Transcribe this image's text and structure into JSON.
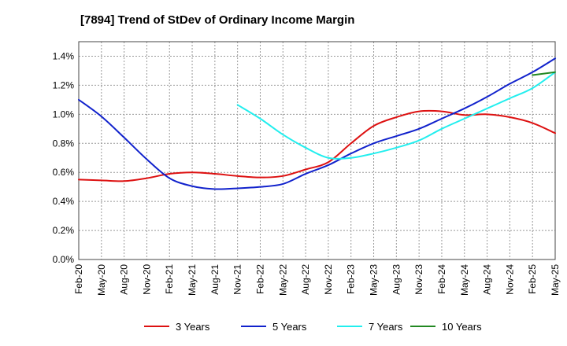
{
  "chart_data": {
    "type": "line",
    "title": "[7894]  Trend of StDev of Ordinary Income Margin",
    "xlabel": "",
    "ylabel": "",
    "ylim": [
      0,
      1.5
    ],
    "yticks": [
      0,
      0.2,
      0.4,
      0.6,
      0.8,
      1.0,
      1.2,
      1.4
    ],
    "ytick_labels": [
      "0.0%",
      "0.2%",
      "0.4%",
      "0.6%",
      "0.8%",
      "1.0%",
      "1.2%",
      "1.4%"
    ],
    "x_labels": [
      "Feb-20",
      "May-20",
      "Aug-20",
      "Nov-20",
      "Feb-21",
      "May-21",
      "Aug-21",
      "Nov-21",
      "Feb-22",
      "May-22",
      "Aug-22",
      "Nov-22",
      "Feb-23",
      "May-23",
      "Aug-23",
      "Nov-23",
      "Feb-24",
      "May-24",
      "Aug-24",
      "Nov-24",
      "Feb-25",
      "May-25"
    ],
    "grid": true,
    "legend_position": "bottom",
    "series": [
      {
        "name": "3 Years",
        "color": "#dd1111",
        "values": [
          0.55,
          0.545,
          0.54,
          0.56,
          0.59,
          0.6,
          0.59,
          0.575,
          0.565,
          0.575,
          0.62,
          0.67,
          0.8,
          0.92,
          0.98,
          1.02,
          1.02,
          0.995,
          1.0,
          0.98,
          0.94,
          0.87
        ]
      },
      {
        "name": "5 Years",
        "color": "#1122cc",
        "values": [
          1.1,
          0.985,
          0.84,
          0.69,
          0.56,
          0.505,
          0.485,
          0.49,
          0.5,
          0.52,
          0.59,
          0.65,
          0.73,
          0.8,
          0.85,
          0.9,
          0.97,
          1.04,
          1.12,
          1.21,
          1.29,
          1.385
        ]
      },
      {
        "name": "7 Years",
        "color": "#22eeee",
        "values": [
          null,
          null,
          null,
          null,
          null,
          null,
          null,
          1.065,
          0.97,
          0.86,
          0.77,
          0.7,
          0.7,
          0.73,
          0.77,
          0.82,
          0.9,
          0.97,
          1.04,
          1.11,
          1.18,
          1.29
        ]
      },
      {
        "name": "10 Years",
        "color": "#228822",
        "values": [
          null,
          null,
          null,
          null,
          null,
          null,
          null,
          null,
          null,
          null,
          null,
          null,
          null,
          null,
          null,
          null,
          null,
          null,
          null,
          null,
          1.27,
          1.29
        ]
      }
    ]
  }
}
